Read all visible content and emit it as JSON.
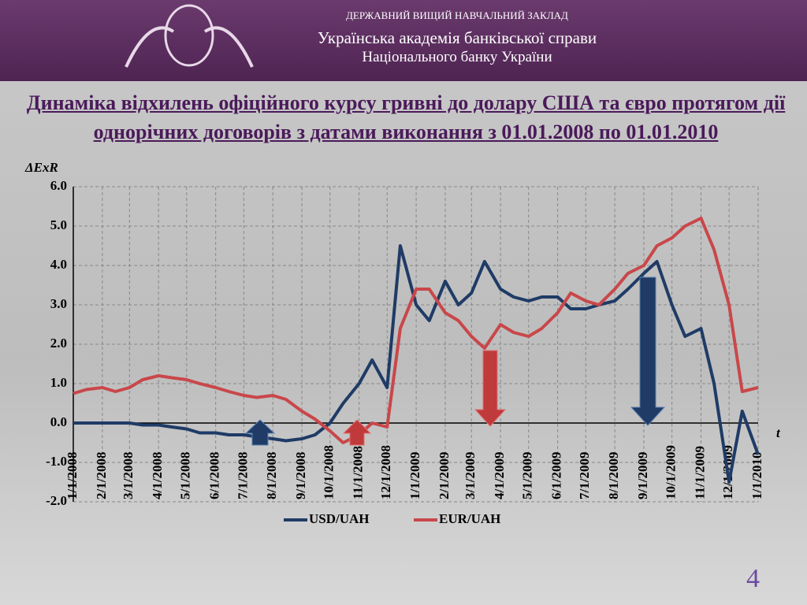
{
  "header": {
    "line1": "ДЕРЖАВНИЙ ВИЩИЙ НАВЧАЛЬНИЙ ЗАКЛАД",
    "line2": "Українська академія банківської справи",
    "line3": "Національного банку України"
  },
  "page_number": "4",
  "chart_data": {
    "type": "line",
    "title": "Динаміка відхилень офіційного курсу гривні до долару США та євро  протягом дії однорічних договорів з датами  виконання з 01.01.2008 по 01.01.2010",
    "y_label": "ΔExR",
    "x_label": "t",
    "xlim": [
      "1/1/2008",
      "1/1/2010"
    ],
    "xticks": [
      "1/1/2008",
      "2/1/2008",
      "3/1/2008",
      "4/1/2008",
      "5/1/2008",
      "6/1/2008",
      "7/1/2008",
      "8/1/2008",
      "9/1/2008",
      "10/1/2008",
      "11/1/2008",
      "12/1/2008",
      "1/1/2009",
      "2/1/2009",
      "3/1/2009",
      "4/1/2009",
      "5/1/2009",
      "6/1/2009",
      "7/1/2009",
      "8/1/2009",
      "9/1/2009",
      "10/1/2009",
      "11/1/2009",
      "12/1/2009",
      "1/1/2010"
    ],
    "ylim": [
      -2,
      6
    ],
    "yticks": [
      {
        "value": -2,
        "label": "-2.0"
      },
      {
        "value": -1,
        "label": "-1.0"
      },
      {
        "value": 0,
        "label": "0.0"
      },
      {
        "value": 1,
        "label": "1.0"
      },
      {
        "value": 2,
        "label": "2.0"
      },
      {
        "value": 3,
        "label": "3.0"
      },
      {
        "value": 4,
        "label": "4.0"
      },
      {
        "value": 5,
        "label": "5.0"
      },
      {
        "value": 6,
        "label": "6.0"
      }
    ],
    "grid": true,
    "legend": "bottom",
    "x": [
      "1/1/2008",
      "1/15/2008",
      "2/1/2008",
      "2/15/2008",
      "3/1/2008",
      "3/15/2008",
      "4/1/2008",
      "4/15/2008",
      "5/1/2008",
      "5/15/2008",
      "6/1/2008",
      "6/15/2008",
      "7/1/2008",
      "7/15/2008",
      "8/1/2008",
      "8/15/2008",
      "9/1/2008",
      "9/15/2008",
      "10/1/2008",
      "10/15/2008",
      "11/1/2008",
      "11/15/2008",
      "12/1/2008",
      "12/15/2008",
      "1/1/2009",
      "1/15/2009",
      "2/1/2009",
      "2/15/2009",
      "3/1/2009",
      "3/15/2009",
      "4/1/2009",
      "4/15/2009",
      "5/1/2009",
      "5/15/2009",
      "6/1/2009",
      "6/15/2009",
      "7/1/2009",
      "7/15/2009",
      "8/1/2009",
      "8/15/2009",
      "9/1/2009",
      "9/15/2009",
      "10/1/2009",
      "10/15/2009",
      "11/1/2009",
      "11/15/2009",
      "12/1/2009",
      "12/15/2009",
      "1/1/2010"
    ],
    "series": [
      {
        "name": "USD/UAH",
        "color": "#1f3b66",
        "values": [
          0.0,
          0.0,
          0.0,
          0.0,
          0.0,
          -0.05,
          -0.05,
          -0.1,
          -0.15,
          -0.25,
          -0.25,
          -0.3,
          -0.3,
          -0.35,
          -0.4,
          -0.45,
          -0.4,
          -0.3,
          0.0,
          0.5,
          1.0,
          1.6,
          0.9,
          4.5,
          3.0,
          2.6,
          3.6,
          3.0,
          3.3,
          4.1,
          3.4,
          3.2,
          3.1,
          3.2,
          3.2,
          2.9,
          2.9,
          3.0,
          3.1,
          3.4,
          3.8,
          4.1,
          3.0,
          2.2,
          2.4,
          1.0,
          -1.5,
          0.3,
          -0.8
        ]
      },
      {
        "name": "EUR/UAH",
        "color": "#c9474a",
        "values": [
          0.75,
          0.85,
          0.9,
          0.8,
          0.9,
          1.1,
          1.2,
          1.15,
          1.1,
          1.0,
          0.9,
          0.8,
          0.7,
          0.65,
          0.7,
          0.6,
          0.3,
          0.1,
          -0.2,
          -0.5,
          -0.3,
          0.0,
          -0.1,
          2.4,
          3.4,
          3.4,
          2.8,
          2.6,
          2.2,
          1.9,
          2.5,
          2.3,
          2.2,
          2.4,
          2.8,
          3.3,
          3.1,
          3.0,
          3.4,
          3.8,
          4.0,
          4.5,
          4.7,
          5.0,
          5.2,
          4.4,
          3.0,
          0.8,
          0.9
        ]
      }
    ]
  }
}
